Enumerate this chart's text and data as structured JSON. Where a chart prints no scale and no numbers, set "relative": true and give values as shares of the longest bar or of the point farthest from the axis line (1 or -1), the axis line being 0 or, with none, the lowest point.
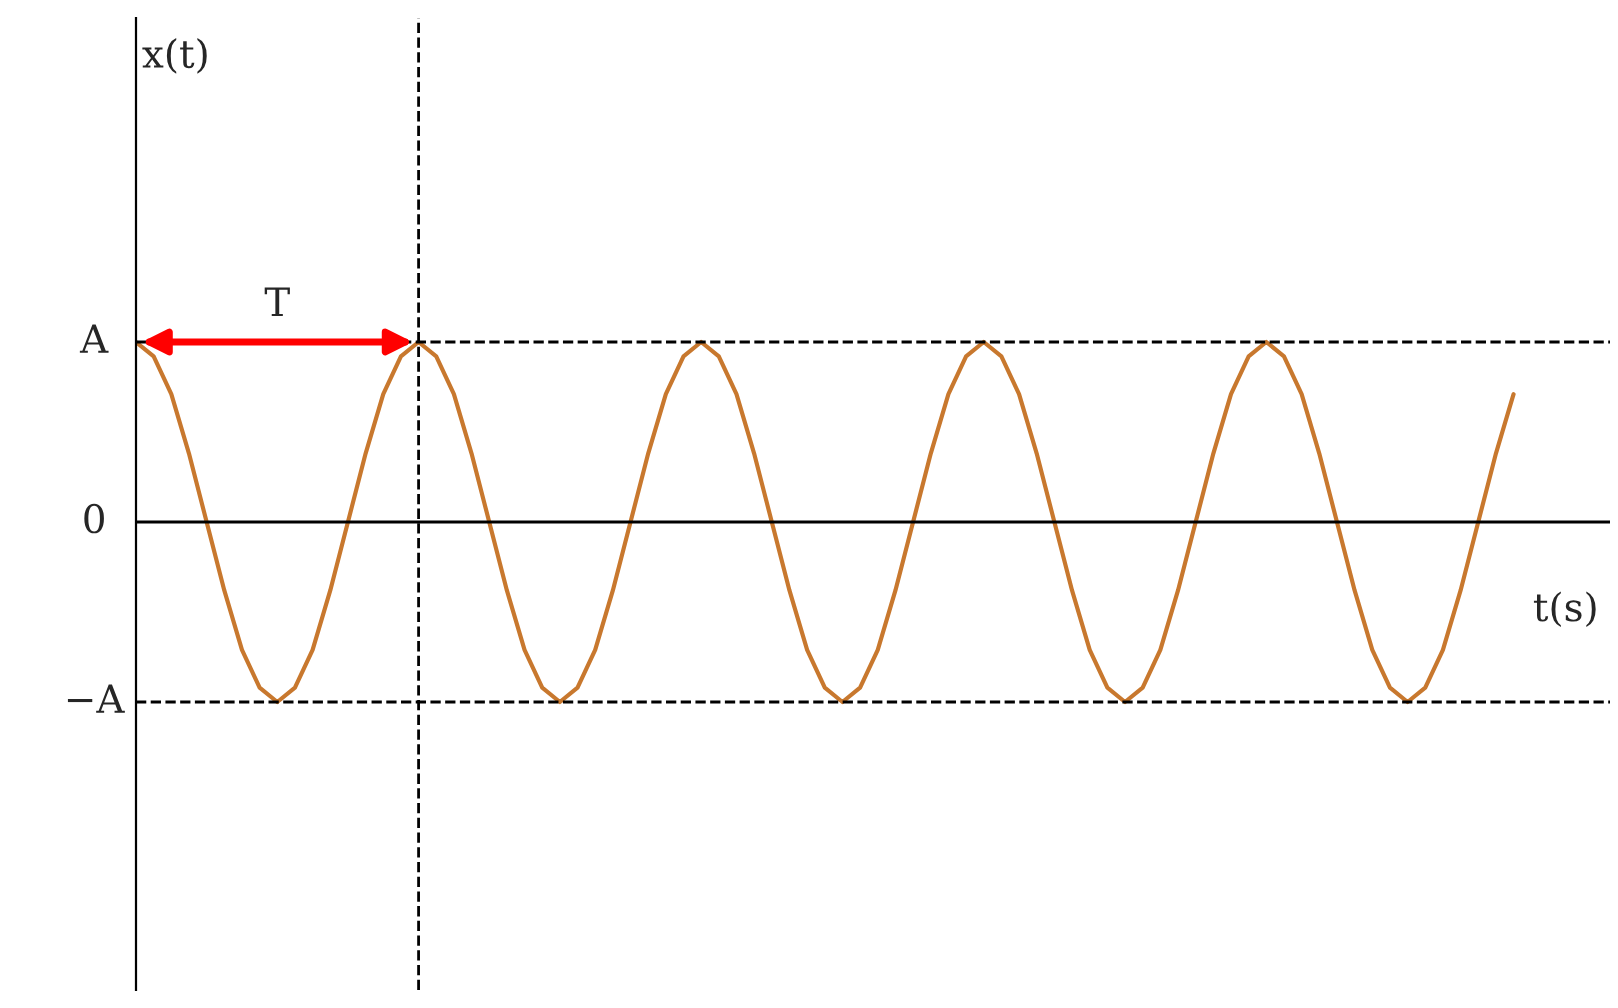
{
  "chart_data": {
    "type": "line",
    "xlabel": "t(s)",
    "relative": true,
    "categories": [
      null,
      null,
      null,
      null,
      null,
      null,
      null,
      null,
      null,
      null,
      null,
      null,
      null,
      null,
      null,
      null,
      null,
      null,
      null,
      null,
      null,
      null,
      null,
      null,
      null,
      null,
      null,
      null,
      null,
      null,
      null,
      null,
      null,
      null,
      null,
      null,
      null,
      null,
      null,
      null,
      null,
      null,
      null,
      null,
      null,
      null,
      null,
      null,
      null,
      null,
      null,
      null,
      null,
      null,
      null,
      null,
      null,
      null,
      null,
      null,
      null,
      null,
      null,
      null,
      null,
      null,
      null,
      null,
      null,
      null,
      null,
      null,
      null,
      null,
      null,
      null,
      null,
      null,
      null
    ],
    "series": [
      {
        "color": "#c8782e",
        "values": [
          1,
          0.92,
          0.71,
          0.38,
          0,
          -0.38,
          -0.71,
          -0.92,
          -1,
          -0.92,
          -0.71,
          -0.38,
          0,
          0.38,
          0.71,
          0.92,
          1,
          0.92,
          0.71,
          0.38,
          0,
          -0.38,
          -0.71,
          -0.92,
          -1,
          -0.92,
          -0.71,
          -0.38,
          0,
          0.38,
          0.71,
          0.92,
          1,
          0.92,
          0.71,
          0.38,
          0,
          -0.38,
          -0.71,
          -0.92,
          -1,
          -0.92,
          -0.71,
          -0.38,
          0,
          0.38,
          0.71,
          0.92,
          1,
          0.92,
          0.71,
          0.38,
          0,
          -0.38,
          -0.71,
          -0.92,
          -1,
          -0.92,
          -0.71,
          -0.38,
          0,
          0.38,
          0.71,
          0.92,
          1,
          0.92,
          0.71,
          0.38,
          0,
          -0.38,
          -0.71,
          -0.92,
          -1,
          -0.92,
          -0.71,
          -0.38,
          0,
          0.38,
          0.71
        ]
      }
    ],
    "marker": "none",
    "line_style": "solid",
    "ref_lines": [
      {
        "axis": "y",
        "value": 1,
        "label": "A",
        "color": "#000000",
        "line_style": "dashed"
      },
      {
        "axis": "y",
        "value": 0,
        "label": "0",
        "color": "#000000",
        "line_style": "solid"
      },
      {
        "axis": "y",
        "value": -1,
        "label": "−A",
        "color": "#000000",
        "line_style": "dashed"
      }
    ],
    "annotations": [
      "x(t)",
      "T"
    ]
  }
}
